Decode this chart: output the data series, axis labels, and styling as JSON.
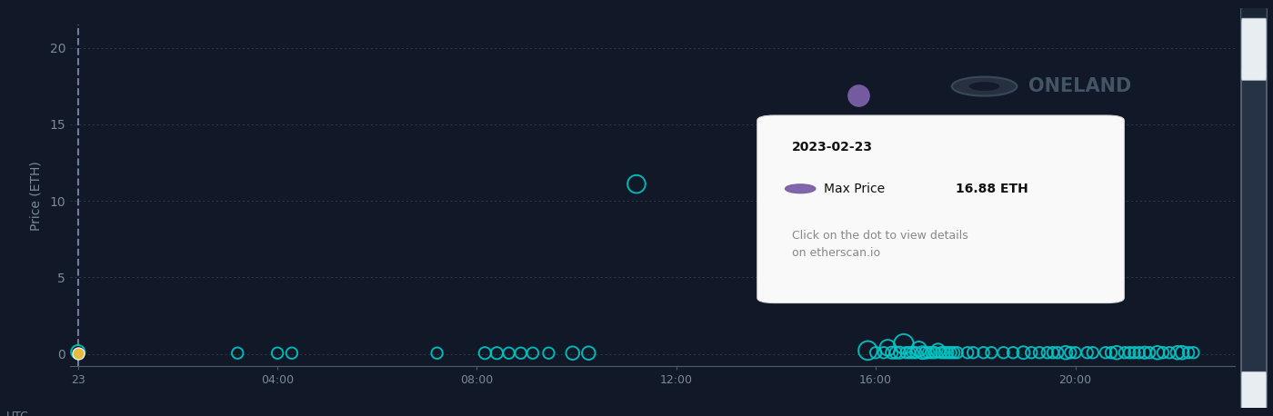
{
  "background_color": "#111827",
  "plot_bg_color": "#111827",
  "title_ylabel": "Price (ETH)",
  "xlabel": "UTC",
  "yticks": [
    0,
    5,
    10,
    15,
    20
  ],
  "xlim": [
    -10,
    1450
  ],
  "ylim": [
    -0.8,
    21.5
  ],
  "grid_color": "#2e3f54",
  "axis_color": "#4a5a70",
  "tick_color": "#7a8a9a",
  "dashed_line_x": 0,
  "watermark_text": "ONELAND",
  "tooltip": {
    "date": "2023-02-23",
    "label": "Max Price",
    "value": "16.88 ETH",
    "note": "Click on the dot to view details\non etherscan.io"
  },
  "cyan_color": "#00c8c8",
  "purple_color": "#7b5ea7",
  "yellow_color": "#e8c040",
  "cyan_trades": [
    {
      "t": 0,
      "price": 0.12,
      "size": 120
    },
    {
      "t": 200,
      "price": 0.05,
      "size": 80
    },
    {
      "t": 250,
      "price": 0.05,
      "size": 80
    },
    {
      "t": 268,
      "price": 0.05,
      "size": 80
    },
    {
      "t": 450,
      "price": 0.05,
      "size": 80
    },
    {
      "t": 510,
      "price": 0.05,
      "size": 90
    },
    {
      "t": 525,
      "price": 0.05,
      "size": 90
    },
    {
      "t": 540,
      "price": 0.05,
      "size": 80
    },
    {
      "t": 555,
      "price": 0.05,
      "size": 80
    },
    {
      "t": 570,
      "price": 0.05,
      "size": 80
    },
    {
      "t": 590,
      "price": 0.05,
      "size": 80
    },
    {
      "t": 620,
      "price": 0.05,
      "size": 110
    },
    {
      "t": 640,
      "price": 0.05,
      "size": 110
    },
    {
      "t": 700,
      "price": 11.1,
      "size": 200
    },
    {
      "t": 990,
      "price": 0.22,
      "size": 220
    },
    {
      "t": 1000,
      "price": 0.08,
      "size": 80
    },
    {
      "t": 1010,
      "price": 0.08,
      "size": 80
    },
    {
      "t": 1015,
      "price": 0.4,
      "size": 160
    },
    {
      "t": 1020,
      "price": 0.08,
      "size": 90
    },
    {
      "t": 1025,
      "price": 0.08,
      "size": 90
    },
    {
      "t": 1030,
      "price": 0.08,
      "size": 90
    },
    {
      "t": 1035,
      "price": 0.65,
      "size": 240
    },
    {
      "t": 1038,
      "price": 0.08,
      "size": 80
    },
    {
      "t": 1042,
      "price": 0.08,
      "size": 80
    },
    {
      "t": 1046,
      "price": 0.08,
      "size": 80
    },
    {
      "t": 1050,
      "price": 0.08,
      "size": 80
    },
    {
      "t": 1054,
      "price": 0.32,
      "size": 140
    },
    {
      "t": 1058,
      "price": 0.08,
      "size": 100
    },
    {
      "t": 1062,
      "price": 0.08,
      "size": 90
    },
    {
      "t": 1066,
      "price": 0.08,
      "size": 80
    },
    {
      "t": 1070,
      "price": 0.08,
      "size": 80
    },
    {
      "t": 1074,
      "price": 0.08,
      "size": 80
    },
    {
      "t": 1078,
      "price": 0.22,
      "size": 120
    },
    {
      "t": 1082,
      "price": 0.08,
      "size": 80
    },
    {
      "t": 1086,
      "price": 0.08,
      "size": 80
    },
    {
      "t": 1090,
      "price": 0.08,
      "size": 80
    },
    {
      "t": 1094,
      "price": 0.08,
      "size": 80
    },
    {
      "t": 1098,
      "price": 0.08,
      "size": 80
    },
    {
      "t": 1102,
      "price": 0.08,
      "size": 80
    },
    {
      "t": 1115,
      "price": 0.08,
      "size": 80
    },
    {
      "t": 1122,
      "price": 0.08,
      "size": 80
    },
    {
      "t": 1135,
      "price": 0.08,
      "size": 80
    },
    {
      "t": 1145,
      "price": 0.08,
      "size": 80
    },
    {
      "t": 1160,
      "price": 0.08,
      "size": 80
    },
    {
      "t": 1172,
      "price": 0.08,
      "size": 80
    },
    {
      "t": 1185,
      "price": 0.08,
      "size": 100
    },
    {
      "t": 1195,
      "price": 0.08,
      "size": 80
    },
    {
      "t": 1205,
      "price": 0.08,
      "size": 80
    },
    {
      "t": 1215,
      "price": 0.08,
      "size": 80
    },
    {
      "t": 1222,
      "price": 0.08,
      "size": 80
    },
    {
      "t": 1228,
      "price": 0.08,
      "size": 80
    },
    {
      "t": 1238,
      "price": 0.08,
      "size": 110
    },
    {
      "t": 1244,
      "price": 0.08,
      "size": 80
    },
    {
      "t": 1250,
      "price": 0.08,
      "size": 80
    },
    {
      "t": 1265,
      "price": 0.08,
      "size": 80
    },
    {
      "t": 1272,
      "price": 0.08,
      "size": 80
    },
    {
      "t": 1288,
      "price": 0.08,
      "size": 80
    },
    {
      "t": 1295,
      "price": 0.08,
      "size": 80
    },
    {
      "t": 1302,
      "price": 0.08,
      "size": 110
    },
    {
      "t": 1312,
      "price": 0.08,
      "size": 80
    },
    {
      "t": 1318,
      "price": 0.08,
      "size": 80
    },
    {
      "t": 1324,
      "price": 0.08,
      "size": 80
    },
    {
      "t": 1330,
      "price": 0.08,
      "size": 80
    },
    {
      "t": 1337,
      "price": 0.08,
      "size": 90
    },
    {
      "t": 1343,
      "price": 0.08,
      "size": 80
    },
    {
      "t": 1353,
      "price": 0.08,
      "size": 110
    },
    {
      "t": 1360,
      "price": 0.08,
      "size": 80
    },
    {
      "t": 1368,
      "price": 0.08,
      "size": 80
    },
    {
      "t": 1378,
      "price": 0.08,
      "size": 110
    },
    {
      "t": 1384,
      "price": 0.08,
      "size": 110
    },
    {
      "t": 1392,
      "price": 0.08,
      "size": 80
    },
    {
      "t": 1398,
      "price": 0.08,
      "size": 80
    }
  ],
  "max_price_dot": {
    "t": 978,
    "price": 16.88
  },
  "xtick_positions": [
    0,
    250,
    500,
    750,
    1000,
    1250
  ],
  "xtick_labels": [
    "23",
    "04:00",
    "08:00",
    "12:00",
    "16:00",
    "20:00"
  ]
}
